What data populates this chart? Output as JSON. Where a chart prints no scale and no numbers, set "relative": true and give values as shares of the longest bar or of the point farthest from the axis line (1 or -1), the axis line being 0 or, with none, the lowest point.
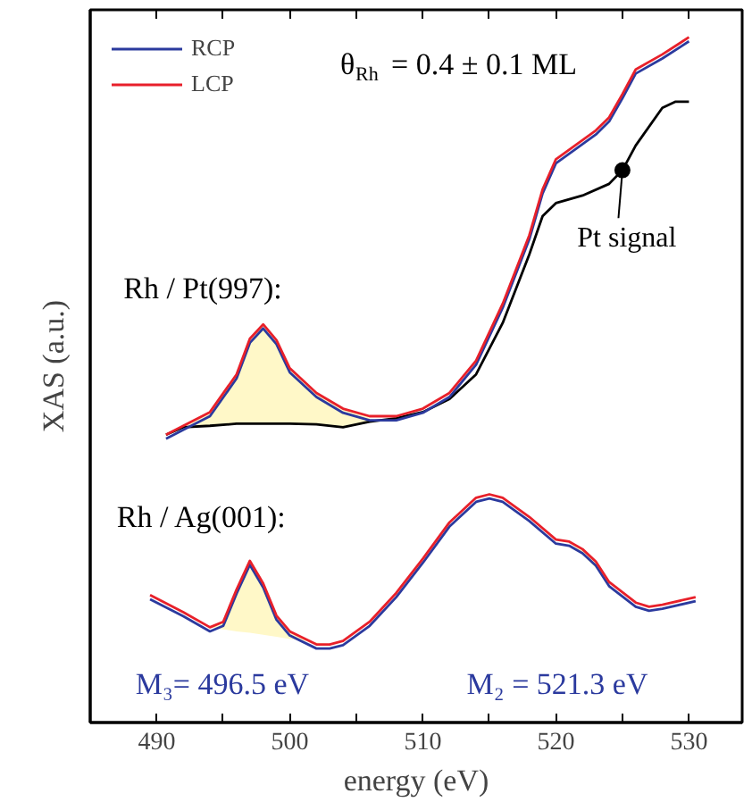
{
  "chart_data": {
    "type": "line",
    "relative": true,
    "xlabel": "energy (eV)",
    "ylabel": "XAS (a.u.)",
    "legend": "top left",
    "grid": false,
    "xlim": [
      485,
      534
    ],
    "xticks": [
      490,
      {
        "value": 495,
        "label": null
      },
      500,
      {
        "value": 505,
        "label": null
      },
      510,
      {
        "value": 515,
        "label": null
      },
      520,
      {
        "value": 525,
        "label": null
      },
      530
    ],
    "series": [
      {
        "color": "#000000",
        "x": [
          490.7,
          492,
          494,
          496,
          498,
          500,
          502,
          504,
          506,
          508,
          510,
          512,
          514,
          516,
          518,
          519,
          520,
          522,
          524,
          525,
          526,
          528,
          529,
          530
        ],
        "values": [
          0.42,
          0.431,
          0.433,
          0.436,
          0.436,
          0.436,
          0.435,
          0.431,
          0.439,
          0.444,
          0.453,
          0.472,
          0.508,
          0.583,
          0.683,
          0.739,
          0.758,
          0.769,
          0.786,
          0.806,
          0.842,
          0.897,
          0.906,
          0.906
        ]
      },
      {
        "name": "RCP",
        "color": "#2b3a9e",
        "x": [
          490.7,
          492,
          494,
          496,
          497,
          498,
          499,
          500,
          502,
          504,
          506,
          508,
          510,
          512,
          514,
          516,
          518,
          519,
          520,
          521,
          522,
          523,
          524,
          525,
          526,
          528,
          530
        ],
        "values": [
          0.414,
          0.427,
          0.447,
          0.502,
          0.554,
          0.575,
          0.552,
          0.511,
          0.475,
          0.452,
          0.441,
          0.441,
          0.452,
          0.475,
          0.522,
          0.605,
          0.705,
          0.772,
          0.816,
          0.83,
          0.844,
          0.858,
          0.877,
          0.911,
          0.947,
          0.969,
          0.994
        ]
      },
      {
        "name": "LCP",
        "color": "#e8202a",
        "x": [
          490.7,
          492,
          494,
          496,
          497,
          498,
          499,
          500,
          502,
          504,
          506,
          508,
          510,
          512,
          514,
          516,
          518,
          519,
          520,
          521,
          522,
          523,
          524,
          525,
          526,
          528,
          530
        ],
        "values": [
          0.42,
          0.433,
          0.453,
          0.508,
          0.56,
          0.581,
          0.558,
          0.517,
          0.481,
          0.458,
          0.447,
          0.447,
          0.458,
          0.481,
          0.528,
          0.611,
          0.711,
          0.778,
          0.822,
          0.836,
          0.85,
          0.864,
          0.883,
          0.917,
          0.953,
          0.975,
          1.0
        ],
        "lower": [
          0.42,
          0.431,
          0.433,
          0.436,
          0.436,
          0.436,
          0.436,
          0.436,
          0.435,
          0.431,
          0.439,
          null,
          null,
          null,
          null,
          null,
          null,
          null,
          null,
          null,
          null,
          null,
          null,
          null,
          null,
          null,
          null
        ],
        "upper": [
          0.42,
          0.433,
          0.453,
          0.508,
          0.56,
          0.581,
          0.558,
          0.517,
          0.481,
          0.458,
          0.447,
          null,
          null,
          null,
          null,
          null,
          null,
          null,
          null,
          null,
          null,
          null,
          null,
          null,
          null,
          null,
          null
        ]
      },
      {
        "color": "#2b3a9e",
        "x": [
          489.5,
          492,
          494,
          495,
          496,
          497,
          498,
          499,
          500,
          502,
          503,
          504,
          506,
          508,
          510,
          512,
          514,
          515,
          516,
          518,
          520,
          521,
          522,
          523,
          524,
          526,
          527,
          528,
          530.5
        ],
        "values": [
          0.18,
          0.155,
          0.133,
          0.141,
          0.188,
          0.23,
          0.197,
          0.15,
          0.127,
          0.108,
          0.108,
          0.113,
          0.141,
          0.183,
          0.233,
          0.286,
          0.322,
          0.327,
          0.322,
          0.294,
          0.261,
          0.258,
          0.247,
          0.229,
          0.199,
          0.169,
          0.163,
          0.166,
          0.177
        ]
      },
      {
        "color": "#e8202a",
        "x": [
          489.5,
          492,
          494,
          495,
          496,
          497,
          498,
          499,
          500,
          502,
          503,
          504,
          506,
          508,
          510,
          512,
          514,
          515,
          516,
          518,
          520,
          521,
          522,
          523,
          524,
          526,
          527,
          528,
          530.5
        ],
        "values": [
          0.186,
          0.161,
          0.139,
          0.147,
          0.194,
          0.236,
          0.203,
          0.156,
          0.133,
          0.114,
          0.114,
          0.119,
          0.147,
          0.189,
          0.239,
          0.292,
          0.328,
          0.333,
          0.328,
          0.3,
          0.267,
          0.264,
          0.253,
          0.235,
          0.205,
          0.175,
          0.169,
          0.172,
          0.183
        ],
        "lower": [
          null,
          null,
          0.139,
          0.136,
          0.133,
          0.131,
          0.128,
          0.125,
          0.122,
          0.117,
          0.114,
          null,
          null,
          null,
          null,
          null,
          null,
          null,
          null,
          null,
          null,
          0.264,
          0.245,
          0.225,
          0.205,
          null,
          null,
          null,
          null
        ],
        "upper": [
          null,
          null,
          0.139,
          0.147,
          0.194,
          0.236,
          0.203,
          0.156,
          0.133,
          0.114,
          0.114,
          null,
          null,
          null,
          null,
          null,
          null,
          null,
          null,
          null,
          null,
          0.264,
          0.253,
          0.235,
          0.205,
          null,
          null,
          null,
          null
        ]
      }
    ],
    "annotations": [
      "θ$_{Rh}$ = 0.4 ± 0.1 ML",
      "Rh / Pt(997):",
      {
        "text": "Pt signal",
        "x": 525,
        "y": 0.806
      },
      "Rh / Ag(001):",
      "M₃= 496.5 eV",
      "M₂ = 521.3 eV"
    ]
  }
}
